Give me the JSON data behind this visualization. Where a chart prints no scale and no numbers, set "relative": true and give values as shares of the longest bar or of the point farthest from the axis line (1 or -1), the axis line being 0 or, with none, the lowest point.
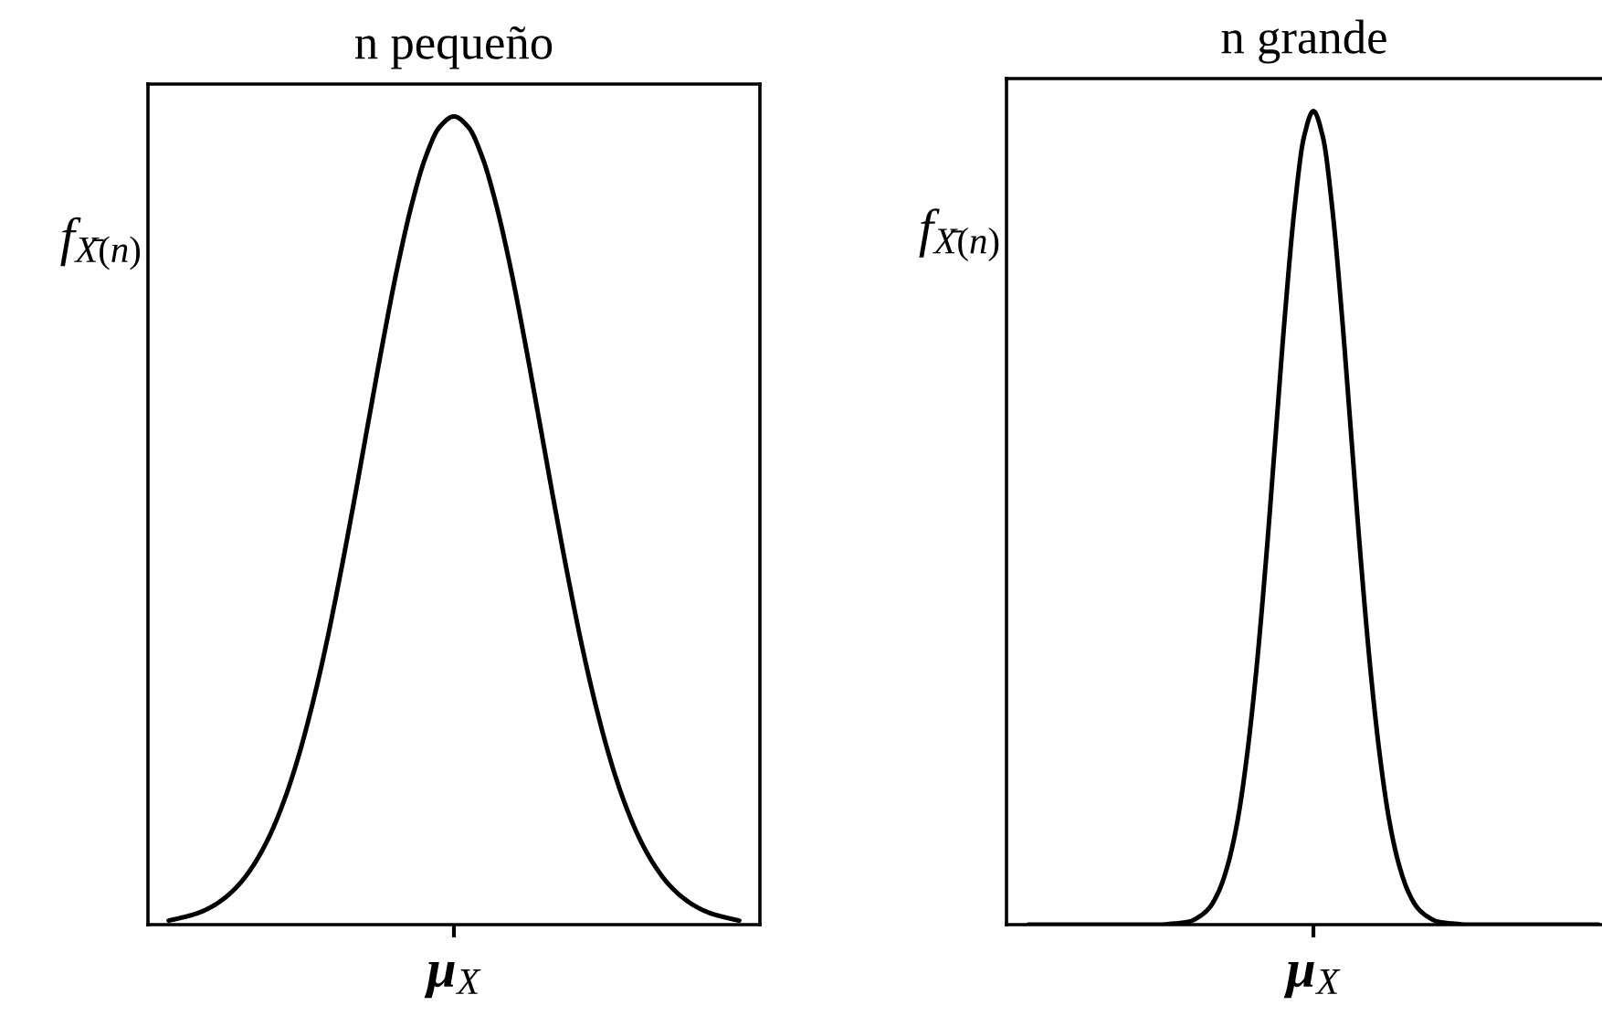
{
  "chart_data": [
    {
      "type": "line",
      "title": "n pequeño",
      "ylabel": "f$_{X̄(n)}$",
      "relative": true,
      "annotations": [
        "μ$_{X}$"
      ],
      "categories": [
        null,
        null,
        null,
        null,
        null,
        null,
        null,
        null,
        null,
        null,
        null,
        null,
        null,
        null,
        null,
        null,
        null,
        null,
        null,
        null,
        null,
        null,
        null,
        null,
        null,
        null,
        null,
        null,
        null,
        null,
        null,
        null,
        null,
        null,
        null,
        null,
        null,
        null,
        null,
        null,
        null
      ],
      "series": [
        {
          "color": "#000000",
          "values": [
            0.005,
            0.009,
            0.014,
            0.022,
            0.034,
            0.051,
            0.075,
            0.107,
            0.149,
            0.202,
            0.267,
            0.343,
            0.43,
            0.524,
            0.622,
            0.719,
            0.81,
            0.888,
            0.949,
            0.987,
            1,
            0.987,
            0.949,
            0.888,
            0.81,
            0.719,
            0.622,
            0.524,
            0.43,
            0.343,
            0.267,
            0.202,
            0.149,
            0.107,
            0.075,
            0.051,
            0.034,
            0.022,
            0.014,
            0.009,
            0.005
          ]
        }
      ]
    },
    {
      "type": "line",
      "title": "n grande",
      "ylabel": "f$_{X̄(n)}$",
      "relative": true,
      "annotations": [
        "μ$_{X}$"
      ],
      "categories": [
        null,
        null,
        null,
        null,
        null,
        null,
        null,
        null,
        null,
        null,
        null,
        null,
        null,
        null,
        null,
        null,
        null,
        null,
        null,
        null,
        null,
        null,
        null,
        null,
        null,
        null,
        null,
        null,
        null,
        null,
        null,
        null,
        null,
        null,
        null,
        null,
        null,
        null,
        null,
        null,
        null,
        null,
        null,
        null,
        null,
        null,
        null,
        null,
        null,
        null,
        null,
        null,
        null,
        null,
        null,
        null,
        null,
        null,
        null,
        null,
        null
      ],
      "series": [
        {
          "color": "#000000",
          "values": [
            0,
            0,
            0,
            0,
            0,
            0,
            0,
            0,
            0,
            0,
            0,
            0,
            0,
            0,
            0,
            0.001,
            0.002,
            0.004,
            0.01,
            0.02,
            0.04,
            0.074,
            0.127,
            0.207,
            0.314,
            0.447,
            0.598,
            0.749,
            0.879,
            0.968,
            1,
            0.968,
            0.879,
            0.749,
            0.598,
            0.447,
            0.314,
            0.207,
            0.127,
            0.074,
            0.04,
            0.02,
            0.01,
            0.004,
            0.002,
            0.001,
            0,
            0,
            0,
            0,
            0,
            0,
            0,
            0,
            0,
            0,
            0,
            0,
            0,
            0,
            0
          ]
        }
      ]
    }
  ]
}
